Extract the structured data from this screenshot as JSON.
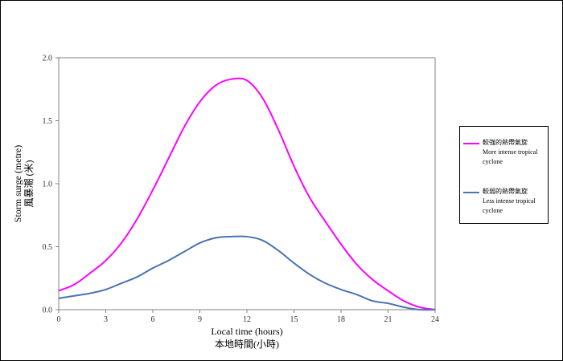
{
  "chart_data": {
    "type": "line",
    "xlabel": "Local time (hours)",
    "xlabel_zh": "本地時間(小時)",
    "ylabel": "Storm surge (metre)",
    "ylabel_zh": "風暴潮 (米)",
    "xlim": [
      0,
      24
    ],
    "ylim": [
      0,
      2.0
    ],
    "xticks": [
      "0",
      "3",
      "6",
      "9",
      "12",
      "15",
      "18",
      "21",
      "24"
    ],
    "yticks": [
      "0.0",
      "0.5",
      "1.0",
      "1.5",
      "2.0"
    ],
    "grid": false,
    "legend_position": "right",
    "series": [
      {
        "name_zh": "較強的熱帶氣旋",
        "name_en_line1": "More intense tropical",
        "name_en_line2": "cyclone",
        "color": "#ff00ff",
        "x": [
          0,
          1,
          2,
          3,
          4,
          5,
          6,
          7,
          8,
          9,
          10,
          11,
          12,
          13,
          14,
          15,
          16,
          17,
          18,
          19,
          20,
          21,
          22,
          23,
          24
        ],
        "y": [
          0.15,
          0.2,
          0.29,
          0.39,
          0.53,
          0.72,
          0.95,
          1.2,
          1.45,
          1.65,
          1.78,
          1.83,
          1.82,
          1.68,
          1.43,
          1.14,
          0.89,
          0.7,
          0.52,
          0.36,
          0.24,
          0.15,
          0.07,
          0.02,
          0.0
        ]
      },
      {
        "name_zh": "較弱的熱帶氣旋",
        "name_en_line1": "Less intense tropical",
        "name_en_line2": "cyclone",
        "color": "#4a73b0",
        "x": [
          0,
          1,
          2,
          3,
          4,
          5,
          6,
          7,
          8,
          9,
          10,
          11,
          12,
          13,
          14,
          15,
          16,
          17,
          18,
          19,
          20,
          21,
          22,
          23,
          24
        ],
        "y": [
          0.09,
          0.11,
          0.13,
          0.16,
          0.21,
          0.26,
          0.33,
          0.39,
          0.46,
          0.53,
          0.57,
          0.58,
          0.58,
          0.55,
          0.47,
          0.37,
          0.28,
          0.21,
          0.16,
          0.12,
          0.07,
          0.05,
          0.02,
          0.0,
          0.0
        ]
      }
    ]
  }
}
